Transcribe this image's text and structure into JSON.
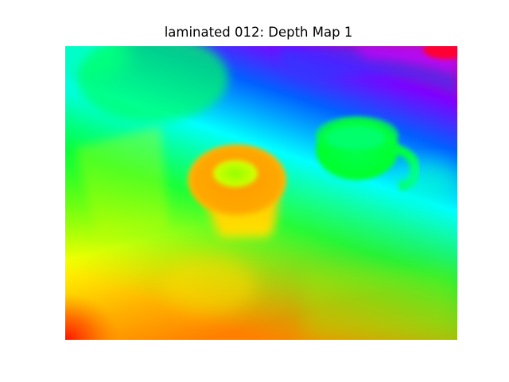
{
  "figure": {
    "title": "laminated 012: Depth Map 1",
    "image_description_colormap": "hsv",
    "colors": {
      "background": "#ffffff",
      "title_text": "#000000"
    }
  }
}
